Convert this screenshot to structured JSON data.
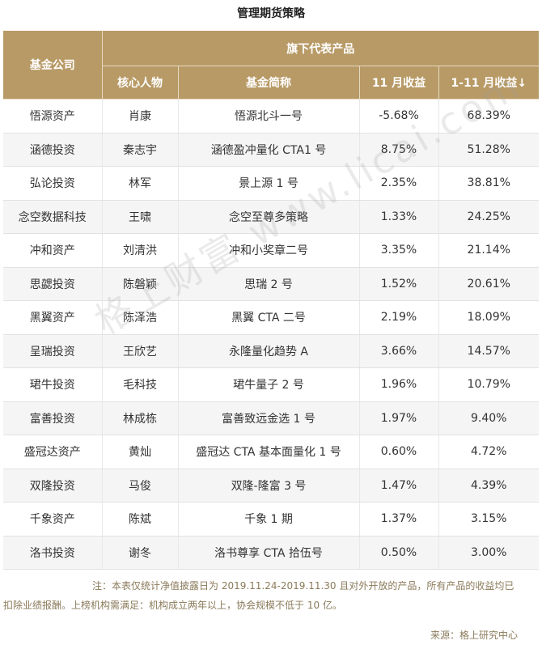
{
  "title": "管理期货策略",
  "headers": {
    "company": "基金公司",
    "product_group": "旗下代表产品",
    "person": "核心人物",
    "fund": "基金简称",
    "nov": "11 月收益",
    "ytd": "1-11 月收益↓"
  },
  "rows": [
    {
      "company": "悟源资产",
      "person": "肖康",
      "fund": "悟源北斗一号",
      "nov": "-5.68%",
      "ytd": "68.39%"
    },
    {
      "company": "涵德投资",
      "person": "秦志宇",
      "fund": "涵德盈冲量化 CTA1 号",
      "nov": "8.75%",
      "ytd": "51.28%"
    },
    {
      "company": "弘论投资",
      "person": "林军",
      "fund": "景上源 1 号",
      "nov": "2.35%",
      "ytd": "38.81%"
    },
    {
      "company": "念空数据科技",
      "person": "王啸",
      "fund": "念空至尊多策略",
      "nov": "1.33%",
      "ytd": "24.25%"
    },
    {
      "company": "冲和资产",
      "person": "刘清洪",
      "fund": "冲和小奖章二号",
      "nov": "3.35%",
      "ytd": "21.14%"
    },
    {
      "company": "思勰投资",
      "person": "陈磐颖",
      "fund": "思瑞 2 号",
      "nov": "1.52%",
      "ytd": "20.61%"
    },
    {
      "company": "黑翼资产",
      "person": "陈泽浩",
      "fund": "黑翼 CTA 二号",
      "nov": "2.19%",
      "ytd": "18.09%"
    },
    {
      "company": "呈瑞投资",
      "person": "王欣艺",
      "fund": "永隆量化趋势 A",
      "nov": "3.66%",
      "ytd": "14.57%"
    },
    {
      "company": "珺牛投资",
      "person": "毛科技",
      "fund": "珺牛量子 2 号",
      "nov": "1.96%",
      "ytd": "10.79%"
    },
    {
      "company": "富善投资",
      "person": "林成栋",
      "fund": "富善致远金选 1 号",
      "nov": "1.97%",
      "ytd": "9.40%"
    },
    {
      "company": "盛冠达资产",
      "person": "黄灿",
      "fund": "盛冠达 CTA 基本面量化 1 号",
      "nov": "0.60%",
      "ytd": "4.72%"
    },
    {
      "company": "双隆投资",
      "person": "马俊",
      "fund": "双隆-隆富 3 号",
      "nov": "1.47%",
      "ytd": "4.39%"
    },
    {
      "company": "千象资产",
      "person": "陈斌",
      "fund": "千象 1 期",
      "nov": "1.37%",
      "ytd": "3.15%"
    },
    {
      "company": "洛书投资",
      "person": "谢冬",
      "fund": "洛书尊享 CTA 拾伍号",
      "nov": "0.50%",
      "ytd": "3.00%"
    }
  ],
  "note": "注：本表仅统计净值披露日为 2019.11.24-2019.11.30 且对外开放的产品，所有产品的收益均已扣除业绩报酬。上榜机构需满足：机构成立两年以上，协会规模不低于 10 亿。",
  "source": "来源：格上研究中心",
  "watermark": "格上财富 www.licai.com",
  "colors": {
    "header_bg": "#b89a66",
    "note_text": "#8a7a5a"
  }
}
